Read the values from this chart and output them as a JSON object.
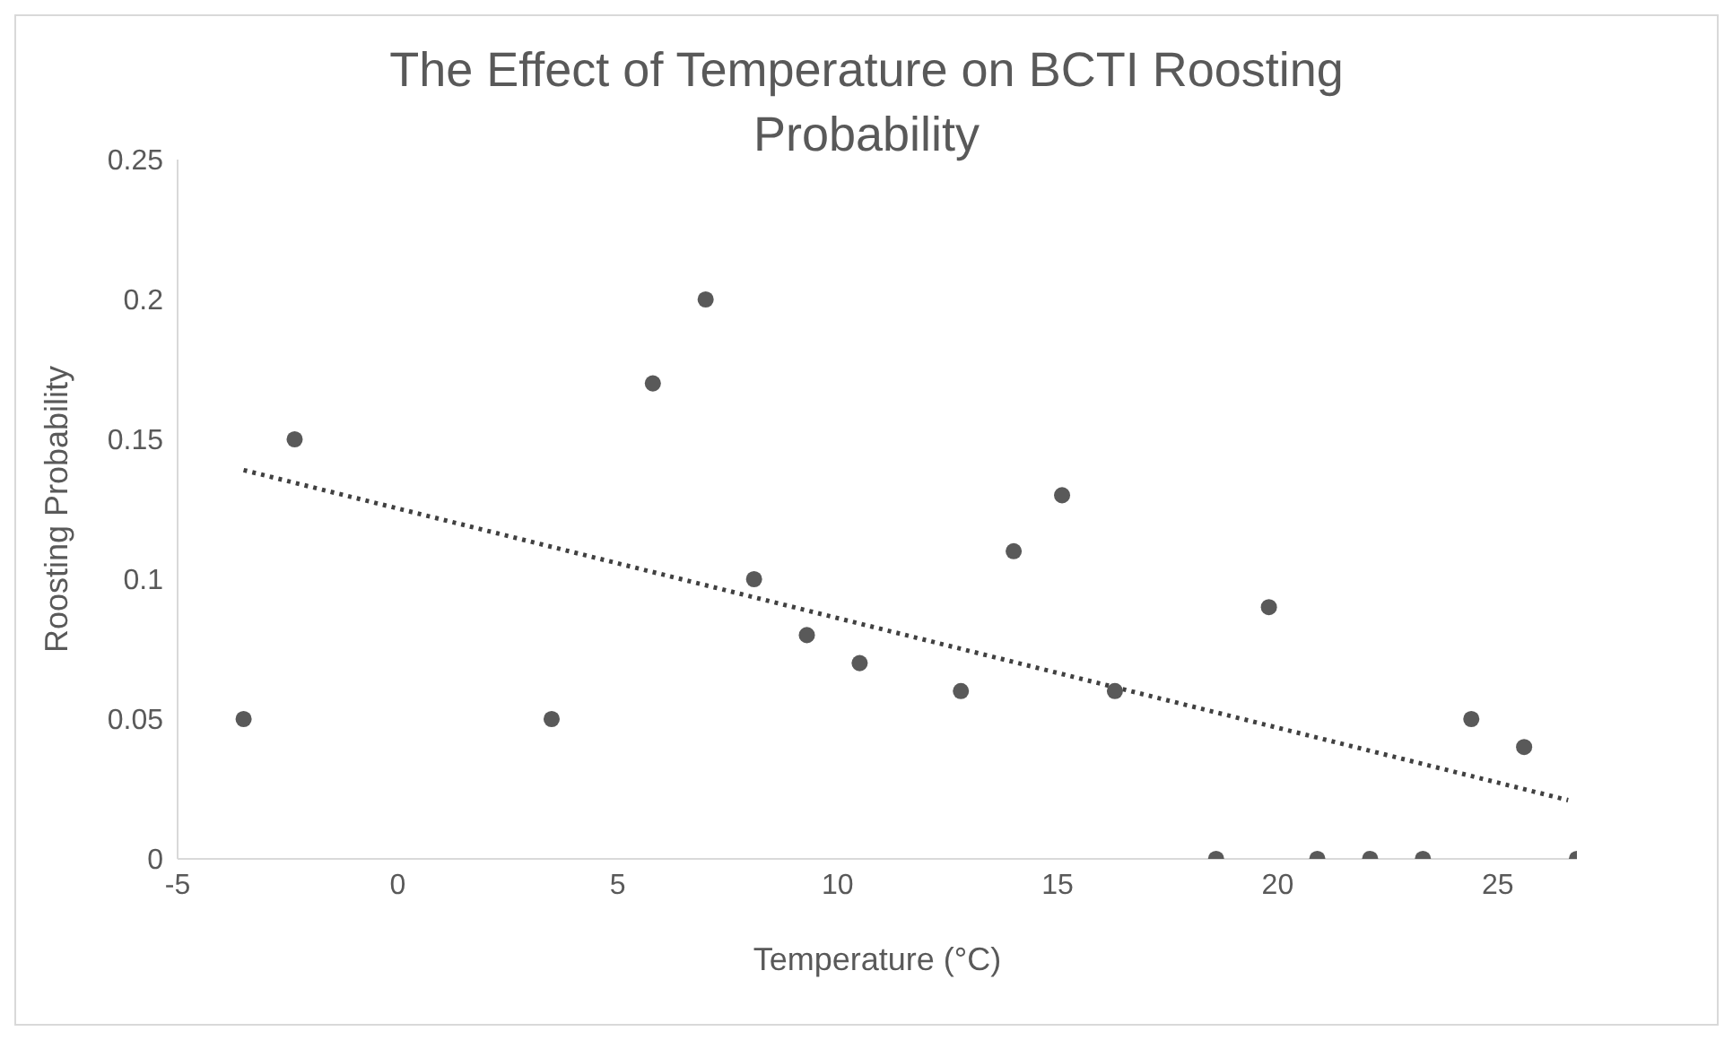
{
  "chart_data": {
    "type": "scatter",
    "title": "The Effect of Temperature on BCTI Roosting Probability",
    "xlabel": "Temperature (°C)",
    "ylabel": "Roosting Probability",
    "xlim": [
      -5,
      26.8
    ],
    "xticks": [
      -5,
      0,
      5,
      10,
      15,
      20,
      25
    ],
    "ylim": [
      0,
      0.25
    ],
    "yticks": [
      0,
      0.05,
      0.1,
      0.15,
      0.2,
      0.25
    ],
    "grid": false,
    "legend": false,
    "marker": "circle",
    "series": [
      {
        "color": "#595959",
        "x": [
          -3.5,
          -2.34,
          3.5,
          5.8,
          7,
          8.1,
          9.3,
          10.5,
          12.8,
          14,
          15.1,
          16.3,
          18.6,
          19.8,
          20.9,
          22.1,
          23.3,
          24.4,
          25.6,
          26.8
        ],
        "values": [
          0.05,
          0.15,
          0.05,
          0.17,
          0.2,
          0.1,
          0.08,
          0.07,
          0.06,
          0.11,
          0.13,
          0.06,
          0,
          0.09,
          0,
          0,
          0,
          0.05,
          0.04,
          0
        ]
      },
      {
        "type": "line",
        "color": "#404040",
        "line_style": "dotted",
        "marker": "none",
        "x": [
          -3.5,
          26.6
        ],
        "values": [
          0.139,
          0.021
        ]
      }
    ]
  }
}
